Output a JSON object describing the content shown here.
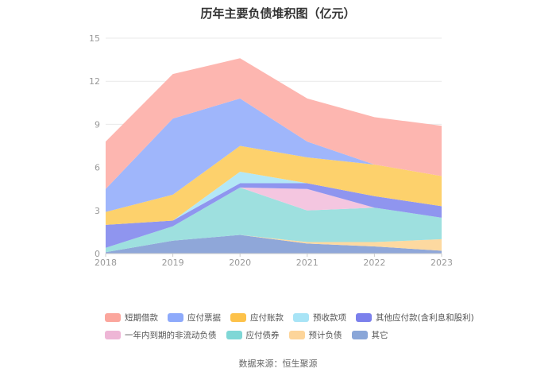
{
  "chart_data": {
    "type": "area",
    "stacked": true,
    "title": "历年主要负债堆积图（亿元）",
    "x": [
      "2018",
      "2019",
      "2020",
      "2021",
      "2022",
      "2023"
    ],
    "ylim": [
      0,
      15
    ],
    "yticks": [
      "0",
      "3",
      "6",
      "9",
      "12",
      "15"
    ],
    "grid": true,
    "legend_position": "bottom",
    "series": [
      {
        "name": "其它",
        "color": "#8fa7d9",
        "values": [
          0.1,
          0.9,
          1.3,
          0.7,
          0.5,
          0.2
        ]
      },
      {
        "name": "预计负债",
        "color": "#fdd9a0",
        "values": [
          0,
          0,
          0,
          0.1,
          0.3,
          0.8
        ]
      },
      {
        "name": "应付债券",
        "color": "#9ee0df",
        "values": [
          0.3,
          1.0,
          3.3,
          2.2,
          2.4,
          1.5
        ]
      },
      {
        "name": "一年内到期的非流动负债",
        "color": "#f4c6e0",
        "values": [
          0,
          0,
          0,
          1.5,
          0,
          0
        ]
      },
      {
        "name": "其他应付款(含利息和股利)",
        "color": "#8f95ef",
        "values": [
          1.6,
          0.4,
          0.3,
          0.4,
          0.8,
          0.8
        ]
      },
      {
        "name": "预收款项",
        "color": "#b3e7f6",
        "values": [
          0,
          0,
          0.8,
          0,
          0,
          0
        ]
      },
      {
        "name": "应付账款",
        "color": "#fdd16c",
        "values": [
          0.9,
          1.8,
          1.8,
          1.8,
          2.2,
          2.1
        ]
      },
      {
        "name": "应付票据",
        "color": "#9fb6fb",
        "values": [
          1.6,
          5.3,
          3.3,
          1.1,
          0,
          0
        ]
      },
      {
        "name": "短期借款",
        "color": "#fdb6b0",
        "values": [
          3.3,
          3.1,
          2.8,
          3.0,
          3.3,
          3.5
        ]
      }
    ]
  },
  "legend": {
    "row1": [
      {
        "label": "短期借款",
        "color": "#fba69d"
      },
      {
        "label": "应付票据",
        "color": "#8eaafb"
      },
      {
        "label": "应付账款",
        "color": "#fdc24a"
      },
      {
        "label": "预收款项",
        "color": "#a8e4f6"
      },
      {
        "label": "其他应付款(含利息和股利)",
        "color": "#7b80ec"
      }
    ],
    "row2": [
      {
        "label": "一年内到期的非流动负债",
        "color": "#eeb6d6"
      },
      {
        "label": "应付债券",
        "color": "#7fd7d6"
      },
      {
        "label": "预计负债",
        "color": "#fdd59a"
      },
      {
        "label": "其它",
        "color": "#8aa6d8"
      }
    ]
  },
  "source": "数据来源：恒生聚源"
}
